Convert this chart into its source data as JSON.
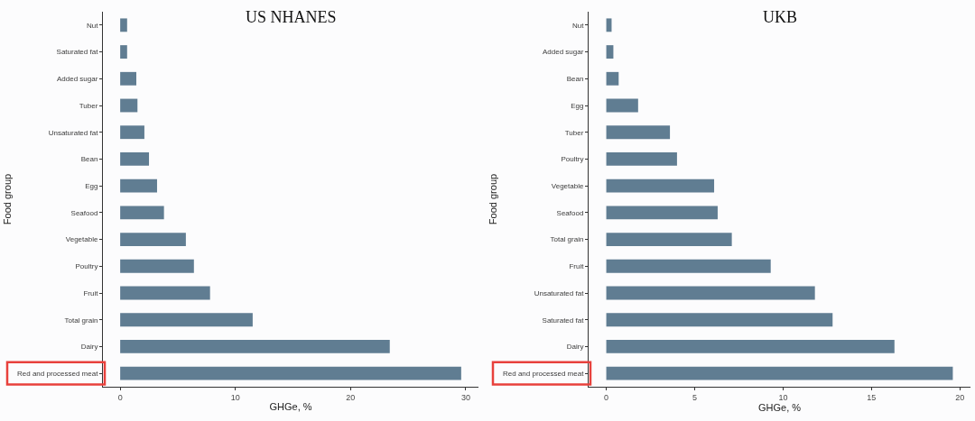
{
  "chart_data": [
    {
      "type": "bar",
      "orientation": "horizontal",
      "title": "US NHANES",
      "xlabel": "GHGe, %",
      "ylabel": "Food group",
      "categories": [
        "Nut",
        "Saturated fat",
        "Added sugar",
        "Tuber",
        "Unsaturated fat",
        "Bean",
        "Egg",
        "Seafood",
        "Vegetable",
        "Poultry",
        "Fruit",
        "Total grain",
        "Dairy",
        "Red and processed meat"
      ],
      "values": [
        0.6,
        0.6,
        1.4,
        1.5,
        2.1,
        2.5,
        3.2,
        3.8,
        5.7,
        6.4,
        7.8,
        11.5,
        23.4,
        29.6
      ],
      "color": "#607d92",
      "xlim": [
        -1.5,
        31.1
      ],
      "xticks": [
        0,
        10,
        20,
        30
      ],
      "grid": false,
      "legend": false
    },
    {
      "type": "bar",
      "orientation": "horizontal",
      "title": "UKB",
      "xlabel": "GHGe, %",
      "ylabel": "Food group",
      "categories": [
        "Nut",
        "Added sugar",
        "Bean",
        "Egg",
        "Tuber",
        "Poultry",
        "Vegetable",
        "Seafood",
        "Total grain",
        "Fruit",
        "Unsaturated fat",
        "Saturated fat",
        "Dairy",
        "Red and processed meat"
      ],
      "values": [
        0.3,
        0.4,
        0.7,
        1.8,
        3.6,
        4.0,
        6.1,
        6.3,
        7.1,
        9.3,
        11.8,
        12.8,
        16.3,
        19.6
      ],
      "color": "#607d92",
      "xlim": [
        -1,
        20.6
      ],
      "xticks": [
        0,
        5,
        10,
        15,
        20
      ],
      "grid": false,
      "legend": false
    }
  ]
}
